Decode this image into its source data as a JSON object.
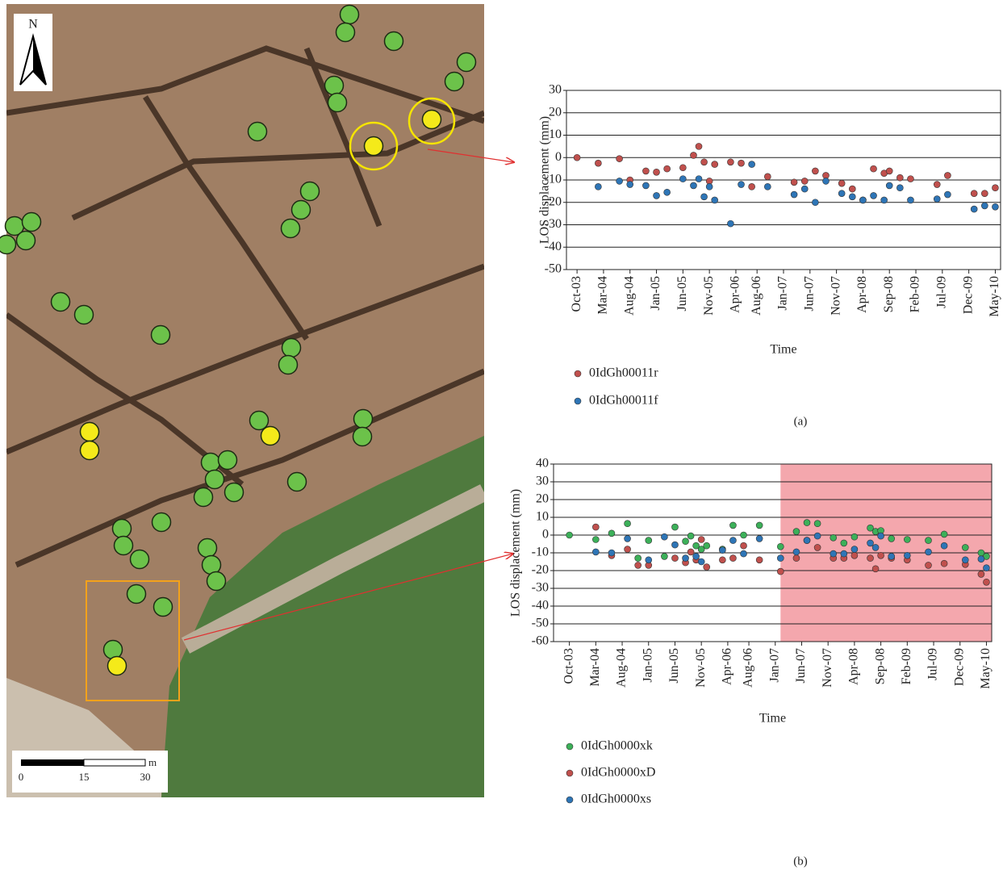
{
  "map": {
    "north": "N",
    "scale_labels": [
      "0",
      "15",
      "30"
    ],
    "scale_unit": "m"
  },
  "chart_data": [
    {
      "type": "scatter",
      "label": "(a)",
      "xlabel": "Time",
      "ylabel": "LOS displacement (mm)",
      "xlim": [
        "2003-08",
        "2010-06"
      ],
      "ylim": [
        -50,
        30
      ],
      "yticks": [
        30,
        20,
        10,
        0,
        -10,
        -20,
        -30,
        -40,
        -50
      ],
      "grid": true,
      "xticks": [
        {
          "value": "2003-10",
          "label": "Oct-03"
        },
        {
          "value": "2004-03",
          "label": "Mar-04"
        },
        {
          "value": "2004-08",
          "label": "Aug-04"
        },
        {
          "value": "2005-01",
          "label": "Jan-05"
        },
        {
          "value": "2005-06",
          "label": "Jun-05"
        },
        {
          "value": "2005-11",
          "label": "Nov-05"
        },
        {
          "value": "2006-04",
          "label": "Apr-06"
        },
        {
          "value": "2006-08",
          "label": "Aug-06"
        },
        {
          "value": "2007-01",
          "label": "Jan-07"
        },
        {
          "value": "2007-06",
          "label": "Jun-07"
        },
        {
          "value": "2007-11",
          "label": "Nov-07"
        },
        {
          "value": "2008-04",
          "label": "Apr-08"
        },
        {
          "value": "2008-09",
          "label": "Sep-08"
        },
        {
          "value": "2009-02",
          "label": "Feb-09"
        },
        {
          "value": "2009-07",
          "label": "Jul-09"
        },
        {
          "value": "2009-12",
          "label": "Dec-09"
        },
        {
          "value": "2010-05",
          "label": "May-10"
        }
      ],
      "series": [
        {
          "name": "0IdGh00011r",
          "color": "#c0504d",
          "x": [
            "2003-10",
            "2004-02",
            "2004-06",
            "2004-08",
            "2004-11",
            "2005-01",
            "2005-03",
            "2005-06",
            "2005-08",
            "2005-09",
            "2005-10",
            "2005-11",
            "2005-12",
            "2006-03",
            "2006-05",
            "2006-07",
            "2006-10",
            "2007-03",
            "2007-05",
            "2007-07",
            "2007-09",
            "2007-12",
            "2008-02",
            "2008-04",
            "2008-06",
            "2008-08",
            "2008-09",
            "2008-11",
            "2009-01",
            "2009-06",
            "2009-08",
            "2010-01",
            "2010-03",
            "2010-05"
          ],
          "values": [
            0,
            -2.5,
            -0.5,
            -10,
            -6,
            -6.5,
            -5,
            -4.5,
            1,
            5,
            -2,
            -10.5,
            -3,
            -2,
            -2.5,
            -13,
            -8.5,
            -11,
            -10.5,
            -6,
            -8,
            -11.5,
            -14,
            -19,
            -5,
            -7,
            -6,
            -9,
            -9.5,
            -12,
            -8,
            -16,
            -16,
            -13.5
          ]
        },
        {
          "name": "0IdGh00011f",
          "color": "#2e75b6",
          "x": [
            "2004-02",
            "2004-06",
            "2004-08",
            "2004-11",
            "2005-01",
            "2005-03",
            "2005-06",
            "2005-08",
            "2005-09",
            "2005-10",
            "2005-11",
            "2005-12",
            "2006-03",
            "2006-05",
            "2006-07",
            "2006-10",
            "2007-03",
            "2007-05",
            "2007-07",
            "2007-09",
            "2007-12",
            "2008-02",
            "2008-04",
            "2008-06",
            "2008-08",
            "2008-09",
            "2008-11",
            "2009-01",
            "2009-06",
            "2009-08",
            "2010-01",
            "2010-03",
            "2010-05"
          ],
          "values": [
            -13,
            -10.5,
            -12,
            -12.5,
            -17,
            -15.5,
            -9.5,
            -12.5,
            -9.5,
            -17.5,
            -13,
            -19,
            -29.5,
            -12,
            -3,
            -13,
            -16.5,
            -14,
            -20,
            -10.5,
            -16,
            -17.5,
            -19,
            -17,
            -19,
            -12.5,
            -13.5,
            -19,
            -18.5,
            -16.5,
            -23,
            -21.5,
            -22
          ]
        }
      ]
    },
    {
      "type": "scatter",
      "label": "(b)",
      "xlabel": "Time",
      "ylabel": "LOS displacement (mm)",
      "xlim": [
        "2003-07",
        "2010-06"
      ],
      "ylim": [
        -60,
        40
      ],
      "yticks": [
        40,
        30,
        20,
        10,
        0,
        -10,
        -20,
        -30,
        -40,
        -50,
        -60
      ],
      "grid": true,
      "shaded_xrange": [
        "2007-02",
        "2010-06"
      ],
      "shade_color": "#f4a7ad",
      "xticks": [
        {
          "value": "2003-10",
          "label": "Oct-03"
        },
        {
          "value": "2004-03",
          "label": "Mar-04"
        },
        {
          "value": "2004-08",
          "label": "Aug-04"
        },
        {
          "value": "2005-01",
          "label": "Jan-05"
        },
        {
          "value": "2005-06",
          "label": "Jun-05"
        },
        {
          "value": "2005-11",
          "label": "Nov-05"
        },
        {
          "value": "2006-04",
          "label": "Apr-06"
        },
        {
          "value": "2006-08",
          "label": "Aug-06"
        },
        {
          "value": "2007-01",
          "label": "Jan-07"
        },
        {
          "value": "2007-06",
          "label": "Jun-07"
        },
        {
          "value": "2007-11",
          "label": "Nov-07"
        },
        {
          "value": "2008-04",
          "label": "Apr-08"
        },
        {
          "value": "2008-09",
          "label": "Sep-08"
        },
        {
          "value": "2009-02",
          "label": "Feb-09"
        },
        {
          "value": "2009-07",
          "label": "Jul-09"
        },
        {
          "value": "2009-12",
          "label": "Dec-09"
        },
        {
          "value": "2010-05",
          "label": "May-10"
        }
      ],
      "series": [
        {
          "name": "0IdGh0000xk",
          "color": "#3cb059",
          "x": [
            "2003-10",
            "2004-03",
            "2004-06",
            "2004-09",
            "2004-11",
            "2005-01",
            "2005-04",
            "2005-06",
            "2005-08",
            "2005-09",
            "2005-10",
            "2005-11",
            "2005-12",
            "2006-03",
            "2006-05",
            "2006-07",
            "2006-10",
            "2007-02",
            "2007-05",
            "2007-07",
            "2007-09",
            "2007-12",
            "2008-02",
            "2008-04",
            "2008-07",
            "2008-08",
            "2008-09",
            "2008-11",
            "2009-02",
            "2009-06",
            "2009-09",
            "2010-01",
            "2010-04",
            "2010-05"
          ],
          "values": [
            0,
            -2.5,
            1,
            6.5,
            -13,
            -3,
            -12,
            4.5,
            -3.5,
            -0.5,
            -6,
            -8,
            -6,
            -8,
            5.5,
            0,
            5.5,
            -6.5,
            2,
            7,
            6.5,
            -1.5,
            -4.5,
            -1,
            4,
            2,
            2.5,
            -2,
            -2.5,
            -3,
            0.5,
            -7,
            -10,
            -12
          ]
        },
        {
          "name": "0IdGh0000xD",
          "color": "#c0504d",
          "x": [
            "2004-03",
            "2004-06",
            "2004-09",
            "2004-11",
            "2005-01",
            "2005-06",
            "2005-08",
            "2005-09",
            "2005-10",
            "2005-11",
            "2005-12",
            "2006-03",
            "2006-05",
            "2006-07",
            "2006-10",
            "2007-02",
            "2007-05",
            "2007-07",
            "2007-09",
            "2007-12",
            "2008-02",
            "2008-04",
            "2008-07",
            "2008-08",
            "2008-09",
            "2008-11",
            "2009-02",
            "2009-06",
            "2009-09",
            "2010-01",
            "2010-04",
            "2010-05"
          ],
          "values": [
            4.5,
            -11.5,
            -8,
            -17,
            -17,
            -13,
            -15.5,
            -9.5,
            -14,
            -2.5,
            -18,
            -14,
            -13,
            -6,
            -14,
            -20.5,
            -13,
            -3,
            -7,
            -13,
            -13,
            -11.5,
            -13,
            -19,
            -11.5,
            -13,
            -14,
            -17,
            -16,
            -16.5,
            -22,
            -26.5
          ]
        },
        {
          "name": "0IdGh0000xs",
          "color": "#2e75b6",
          "x": [
            "2004-03",
            "2004-06",
            "2004-09",
            "2005-01",
            "2005-04",
            "2005-06",
            "2005-08",
            "2005-10",
            "2005-11",
            "2006-03",
            "2006-05",
            "2006-07",
            "2006-10",
            "2007-02",
            "2007-05",
            "2007-07",
            "2007-09",
            "2007-12",
            "2008-02",
            "2008-04",
            "2008-07",
            "2008-08",
            "2008-09",
            "2008-11",
            "2009-02",
            "2009-06",
            "2009-09",
            "2010-01",
            "2010-04",
            "2010-05"
          ],
          "values": [
            -9.5,
            -10,
            -2,
            -14,
            -1,
            -5.5,
            -13,
            -12,
            -15,
            -8.5,
            -3,
            -10.5,
            -2,
            -13,
            -9.5,
            -3,
            -0.5,
            -10.5,
            -10.5,
            -8,
            -4.5,
            -7,
            -0.5,
            -12,
            -11.5,
            -9.5,
            -6,
            -14,
            -13.5,
            -18.5
          ]
        }
      ]
    }
  ]
}
